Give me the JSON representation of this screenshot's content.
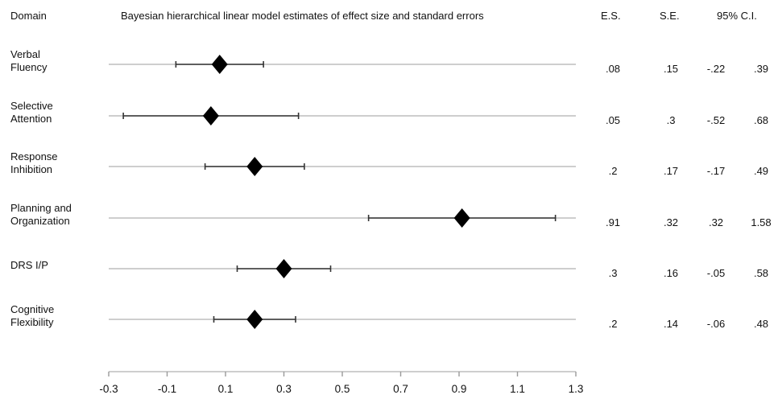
{
  "headers": {
    "domain": "Domain",
    "title": "Bayesian hierarchical linear model estimates of effect size and standard errors",
    "es": "E.S.",
    "se": "S.E.",
    "ci": "95% C.I."
  },
  "rows": [
    {
      "label_lines": [
        "Verbal",
        "Fluency"
      ],
      "es": ".08",
      "se": ".15",
      "lo": "-.22",
      "hi": ".39"
    },
    {
      "label_lines": [
        "Selective",
        "Attention"
      ],
      "es": ".05",
      "se": ".3",
      "lo": "-.52",
      "hi": ".68"
    },
    {
      "label_lines": [
        "Response",
        "Inhibition"
      ],
      "es": ".2",
      "se": ".17",
      "lo": "-.17",
      "hi": ".49"
    },
    {
      "label_lines": [
        "Planning and",
        "Organization"
      ],
      "es": ".91",
      "se": ".32",
      "lo": ".32",
      "hi": "1.58"
    },
    {
      "label_lines": [
        "DRS I/P"
      ],
      "es": ".3",
      "se": ".16",
      "lo": "-.05",
      "hi": ".58"
    },
    {
      "label_lines": [
        "Cognitive",
        "Flexibility"
      ],
      "es": ".2",
      "se": ".14",
      "lo": "-.06",
      "hi": ".48"
    }
  ],
  "chart_data": {
    "type": "scatter",
    "title": "Bayesian hierarchical linear model estimates of effect size and standard errors",
    "categories": [
      "Verbal Fluency",
      "Selective Attention",
      "Response Inhibition",
      "Planning and Organization",
      "DRS I/P",
      "Cognitive Flexibility"
    ],
    "points": [
      {
        "category": "Verbal Fluency",
        "estimate": 0.08,
        "lower": -0.07,
        "upper": 0.23
      },
      {
        "category": "Selective Attention",
        "estimate": 0.05,
        "lower": -0.25,
        "upper": 0.35
      },
      {
        "category": "Response Inhibition",
        "estimate": 0.2,
        "lower": 0.03,
        "upper": 0.37
      },
      {
        "category": "Planning and Organization",
        "estimate": 0.91,
        "lower": 0.59,
        "upper": 1.23
      },
      {
        "category": "DRS I/P",
        "estimate": 0.3,
        "lower": 0.14,
        "upper": 0.46
      },
      {
        "category": "Cognitive Flexibility",
        "estimate": 0.2,
        "lower": 0.06,
        "upper": 0.34
      }
    ],
    "xlim": [
      -0.3,
      1.3
    ],
    "xticks": [
      "-0.3",
      "-0.1",
      "0.1",
      "0.3",
      "0.5",
      "0.7",
      "0.9",
      "1.1",
      "1.3"
    ],
    "xlabel": "",
    "ylabel": "",
    "grid": true,
    "legend": "none"
  }
}
